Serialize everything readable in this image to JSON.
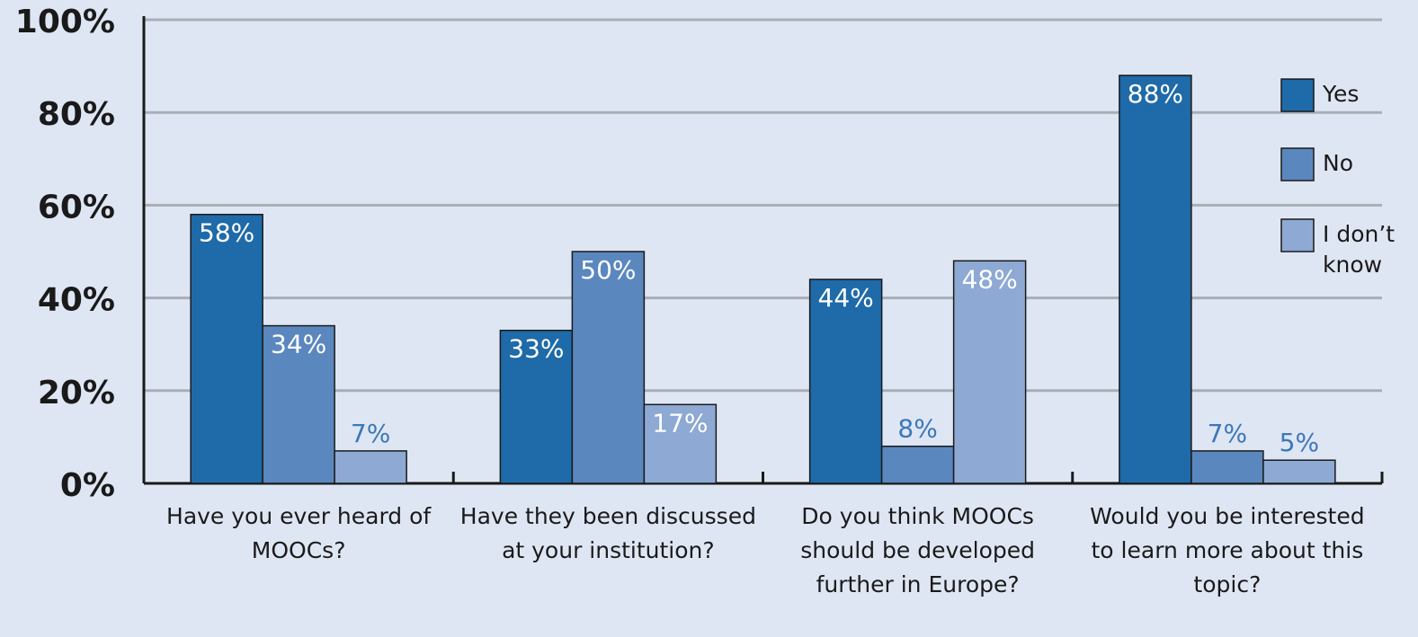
{
  "chart_data": {
    "type": "bar",
    "categories": [
      "Have you ever heard of MOOCs?",
      "Have they been discussed at your institution?",
      "Do you think MOOCs should be developed further in Europe?",
      "Would you be interested to learn more about this topic?"
    ],
    "series": [
      {
        "name": "Yes",
        "color": "#1f6aa8",
        "values": [
          58,
          33,
          44,
          88
        ],
        "value_labels": [
          "58%",
          "33%",
          "44%",
          "88%"
        ]
      },
      {
        "name": "No",
        "color": "#5b87bf",
        "values": [
          34,
          50,
          8,
          7
        ],
        "value_labels": [
          "34%",
          "50%",
          "8%",
          "7%"
        ]
      },
      {
        "name": "I don’t know",
        "color": "#8da9d4",
        "values": [
          7,
          17,
          48,
          5
        ],
        "value_labels": [
          "7%",
          "17%",
          "48%",
          "5%"
        ]
      }
    ],
    "ylim": [
      0,
      100
    ],
    "yticks": [
      {
        "value": 0,
        "label": "0%"
      },
      {
        "value": 20,
        "label": "20%"
      },
      {
        "value": 40,
        "label": "40%"
      },
      {
        "value": 60,
        "label": "60%"
      },
      {
        "value": 80,
        "label": "80%"
      },
      {
        "value": 100,
        "label": "100%"
      }
    ],
    "grid": true,
    "legend": "upper right"
  }
}
